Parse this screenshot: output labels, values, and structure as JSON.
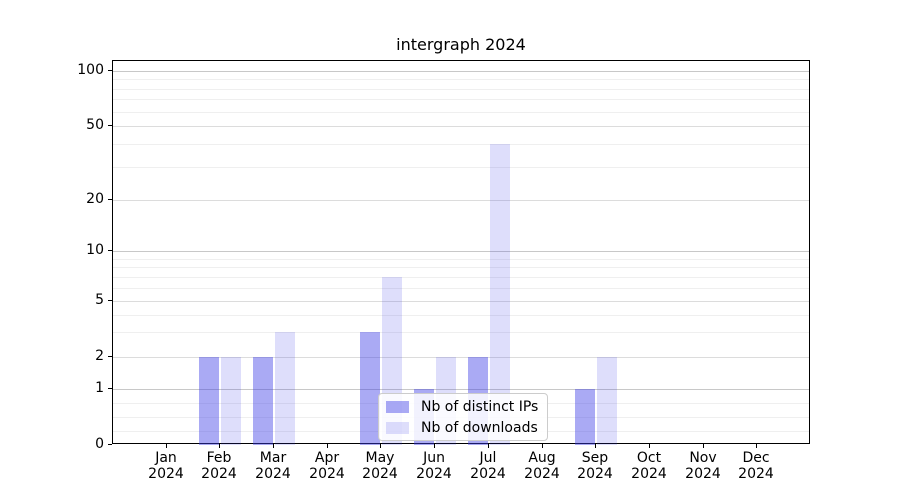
{
  "title": "intergraph 2024",
  "chart_data": {
    "type": "bar",
    "title": "intergraph 2024",
    "categories": [
      "Jan",
      "Feb",
      "Mar",
      "Apr",
      "May",
      "Jun",
      "Jul",
      "Aug",
      "Sep",
      "Oct",
      "Nov",
      "Dec"
    ],
    "year_label": "2024",
    "series": [
      {
        "name": "Nb of distinct IPs",
        "color": "rgba(62,62,230,0.44)",
        "values": [
          0,
          2,
          2,
          0,
          3,
          1,
          2,
          0,
          1,
          0,
          0,
          0
        ]
      },
      {
        "name": "Nb of downloads",
        "color": "rgba(62,62,230,0.17)",
        "values": [
          0,
          2,
          3,
          0,
          7,
          2,
          40,
          0,
          2,
          0,
          0,
          0
        ]
      }
    ],
    "yticks": [
      0,
      1,
      2,
      5,
      10,
      20,
      50,
      100
    ],
    "scale": "symlog",
    "ylim": [
      0,
      100
    ],
    "grid": true,
    "legend_position": "lower center",
    "grid_colors": {
      "minor": "#efefef",
      "major": "#dcdcdc",
      "decade": "#c8c8c8"
    }
  }
}
